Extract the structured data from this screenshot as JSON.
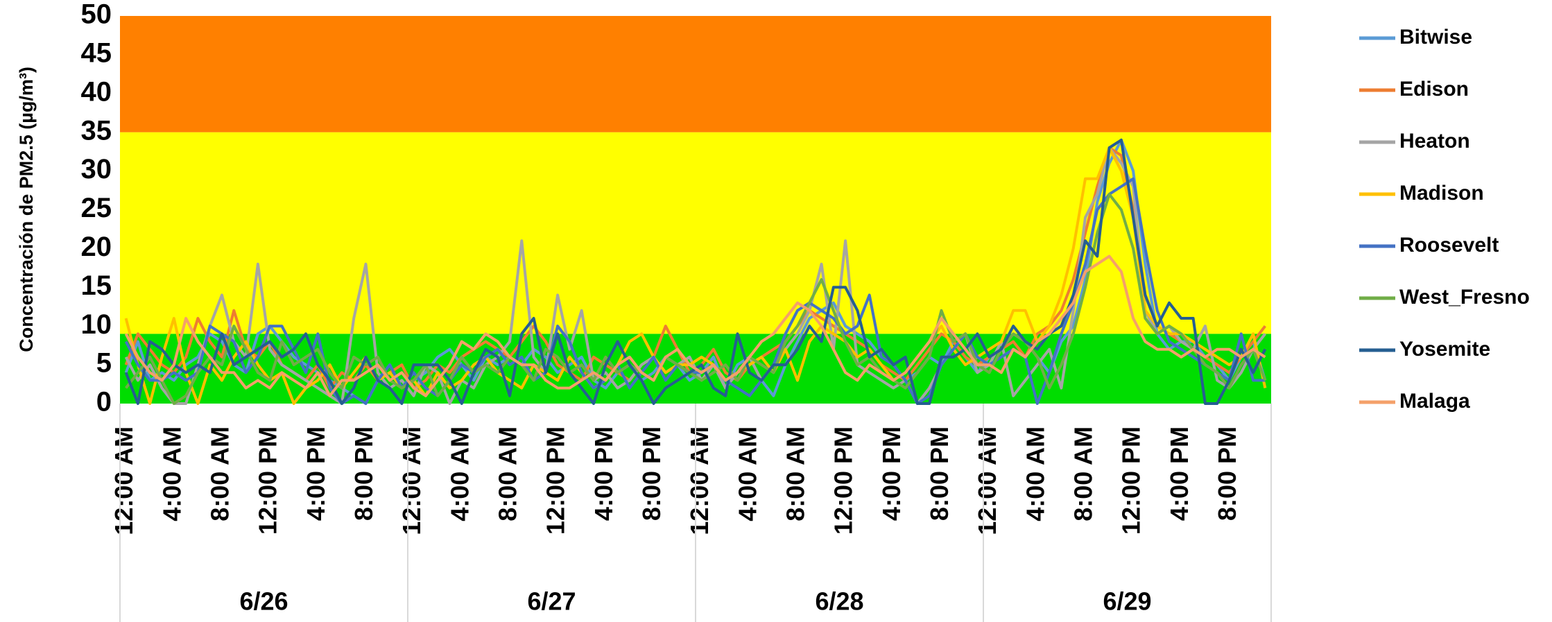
{
  "chart_data": {
    "type": "line",
    "y_label": "Concentración de PM2.5  (µg/m³)",
    "ylim": [
      0,
      50
    ],
    "yticks": [
      0,
      5,
      10,
      15,
      20,
      25,
      30,
      35,
      40,
      45,
      50
    ],
    "bands": [
      {
        "from": 0,
        "to": 9,
        "color": "#00dd00"
      },
      {
        "from": 9,
        "to": 35,
        "color": "#ffff00"
      },
      {
        "from": 35,
        "to": 50,
        "color": "#ff8000"
      }
    ],
    "groups": [
      "6/26",
      "6/27",
      "6/28",
      "6/29"
    ],
    "categories": [
      "12:00 AM",
      null,
      null,
      null,
      "4:00 AM",
      null,
      null,
      null,
      "8:00 AM",
      null,
      null,
      null,
      "12:00 PM",
      null,
      null,
      null,
      "4:00 PM",
      null,
      null,
      null,
      "8:00 PM",
      null,
      null,
      null,
      "12:00 AM",
      null,
      null,
      null,
      "4:00 AM",
      null,
      null,
      null,
      "8:00 AM",
      null,
      null,
      null,
      "12:00 PM",
      null,
      null,
      null,
      "4:00 PM",
      null,
      null,
      null,
      "8:00 PM",
      null,
      null,
      null,
      "12:00 AM",
      null,
      null,
      null,
      "4:00 AM",
      null,
      null,
      null,
      "8:00 AM",
      null,
      null,
      null,
      "12:00 PM",
      null,
      null,
      null,
      "4:00 PM",
      null,
      null,
      null,
      "8:00 PM",
      null,
      null,
      null,
      "12:00 AM",
      null,
      null,
      null,
      "4:00 AM",
      null,
      null,
      null,
      "8:00 AM",
      null,
      null,
      null,
      "12:00 PM",
      null,
      null,
      null,
      "4:00 PM",
      null,
      null,
      null,
      "8:00 PM",
      null,
      null,
      null
    ],
    "series": [
      {
        "name": "Bitwise",
        "color": "#5b9bd5",
        "values": [
          4,
          8,
          3,
          4,
          3,
          5,
          6,
          9,
          8,
          5,
          4,
          9,
          10,
          8,
          6,
          5,
          4,
          3,
          2,
          1,
          0,
          3,
          5,
          2,
          3,
          4,
          6,
          7,
          5,
          3,
          6,
          5,
          6,
          5,
          7,
          6,
          4,
          5,
          6,
          3,
          2,
          4,
          5,
          3,
          4,
          6,
          5,
          3,
          4,
          6,
          2,
          5,
          6,
          3,
          1,
          5,
          8,
          11,
          12,
          13,
          10,
          9,
          8,
          6,
          5,
          3,
          4,
          6,
          5,
          8,
          6,
          4,
          6,
          7,
          9,
          8,
          6,
          4,
          8,
          10,
          16,
          26,
          31,
          34,
          30,
          18,
          9,
          7,
          8,
          8,
          6,
          5,
          3,
          6,
          8,
          3
        ]
      },
      {
        "name": "Edison",
        "color": "#ed7d31",
        "values": [
          5,
          9,
          7,
          5,
          4,
          6,
          11,
          8,
          6,
          12,
          7,
          6,
          8,
          5,
          4,
          3,
          5,
          2,
          4,
          3,
          5,
          3,
          4,
          5,
          2,
          3,
          5,
          4,
          6,
          7,
          8,
          7,
          6,
          8,
          10,
          8,
          5,
          4,
          3,
          6,
          5,
          4,
          3,
          5,
          6,
          10,
          7,
          4,
          5,
          7,
          4,
          3,
          5,
          6,
          7,
          8,
          10,
          12,
          11,
          10,
          9,
          8,
          7,
          5,
          4,
          3,
          5,
          7,
          9,
          8,
          6,
          5,
          6,
          7,
          8,
          6,
          9,
          10,
          12,
          16,
          22,
          28,
          33,
          32,
          25,
          14,
          10,
          9,
          8,
          7,
          6,
          5,
          4,
          6,
          8,
          10
        ]
      },
      {
        "name": "Heaton",
        "color": "#a5a5a5",
        "values": [
          6,
          3,
          5,
          2,
          0,
          0,
          5,
          10,
          14,
          8,
          6,
          18,
          7,
          5,
          4,
          3,
          2,
          1,
          0,
          11,
          18,
          4,
          2,
          3,
          1,
          5,
          4,
          0,
          3,
          2,
          5,
          6,
          8,
          21,
          6,
          4,
          14,
          7,
          12,
          3,
          4,
          2,
          3,
          5,
          6,
          4,
          5,
          6,
          3,
          5,
          2,
          4,
          6,
          3,
          5,
          7,
          9,
          12,
          18,
          7,
          21,
          5,
          4,
          3,
          2,
          3,
          0,
          2,
          5,
          7,
          9,
          4,
          5,
          8,
          1,
          3,
          5,
          7,
          2,
          12,
          24,
          27,
          33,
          31,
          28,
          12,
          9,
          10,
          8,
          7,
          10,
          3,
          2,
          4,
          7,
          9
        ]
      },
      {
        "name": "Madison",
        "color": "#ffc000",
        "values": [
          11,
          5,
          0,
          6,
          11,
          4,
          0,
          5,
          3,
          6,
          8,
          5,
          3,
          4,
          0,
          2,
          3,
          5,
          2,
          4,
          6,
          3,
          4,
          2,
          3,
          1,
          4,
          2,
          3,
          5,
          6,
          4,
          3,
          2,
          5,
          4,
          3,
          6,
          4,
          2,
          3,
          5,
          8,
          9,
          6,
          4,
          5,
          5,
          6,
          5,
          3,
          4,
          5,
          6,
          4,
          7,
          3,
          8,
          10,
          9,
          8,
          6,
          7,
          5,
          3,
          4,
          6,
          8,
          10,
          7,
          5,
          6,
          7,
          8,
          12,
          12,
          8,
          10,
          14,
          20,
          29,
          29,
          33,
          30,
          24,
          12,
          10,
          9,
          9,
          8,
          7,
          6,
          5,
          6,
          9,
          2
        ]
      },
      {
        "name": "Roosevelt",
        "color": "#4472c4",
        "values": [
          8,
          5,
          3,
          3,
          4,
          3,
          4,
          10,
          9,
          8,
          4,
          6,
          10,
          10,
          7,
          4,
          9,
          2,
          0,
          1,
          0,
          3,
          5,
          2,
          4,
          2,
          1,
          3,
          5,
          4,
          6,
          7,
          5,
          6,
          3,
          4,
          10,
          8,
          4,
          2,
          3,
          5,
          2,
          4,
          6,
          3,
          5,
          4,
          4,
          5,
          3,
          2,
          1,
          3,
          5,
          9,
          12,
          13,
          12,
          11,
          9,
          10,
          14,
          6,
          5,
          3,
          0,
          1,
          5,
          7,
          9,
          6,
          5,
          6,
          7,
          6,
          0,
          4,
          9,
          13,
          18,
          25,
          27,
          28,
          29,
          20,
          12,
          8,
          7,
          6,
          5,
          4,
          3,
          9,
          3,
          3
        ]
      },
      {
        "name": "West_Fresno",
        "color": "#70ad47",
        "values": [
          2,
          4,
          6,
          3,
          0,
          1,
          4,
          6,
          5,
          10,
          7,
          4,
          3,
          8,
          5,
          6,
          7,
          4,
          2,
          6,
          5,
          6,
          3,
          2,
          3,
          5,
          1,
          3,
          6,
          4,
          5,
          4,
          6,
          5,
          3,
          7,
          6,
          4,
          5,
          3,
          6,
          4,
          5,
          4,
          3,
          6,
          5,
          4,
          3,
          4,
          5,
          3,
          6,
          5,
          4,
          8,
          10,
          13,
          16,
          12,
          8,
          5,
          6,
          4,
          3,
          2,
          4,
          6,
          12,
          8,
          9,
          5,
          4,
          7,
          9,
          8,
          6,
          2,
          5,
          9,
          15,
          22,
          27,
          25,
          20,
          11,
          9,
          10,
          9,
          7,
          5,
          4,
          2,
          5,
          7,
          3
        ]
      },
      {
        "name": "Yosemite",
        "color": "#255e91",
        "values": [
          4,
          0,
          8,
          7,
          5,
          4,
          5,
          4,
          9,
          5,
          6,
          7,
          8,
          6,
          7,
          9,
          5,
          3,
          0,
          2,
          6,
          3,
          2,
          0,
          5,
          5,
          5,
          3,
          0,
          4,
          7,
          6,
          1,
          9,
          11,
          4,
          9,
          4,
          2,
          0,
          5,
          8,
          5,
          3,
          0,
          2,
          3,
          4,
          5,
          2,
          1,
          9,
          4,
          3,
          5,
          5,
          7,
          10,
          8,
          15,
          15,
          12,
          6,
          7,
          5,
          6,
          0,
          0,
          6,
          6,
          7,
          9,
          6,
          7,
          10,
          8,
          7,
          9,
          10,
          14,
          21,
          19,
          33,
          34,
          24,
          14,
          10,
          13,
          11,
          11,
          0,
          0,
          3,
          7,
          4,
          7
        ]
      },
      {
        "name": "Malaga",
        "color": "#f4a06a",
        "values": [
          9,
          6,
          4,
          3,
          5,
          11,
          8,
          6,
          4,
          4,
          2,
          3,
          2,
          4,
          3,
          2,
          4,
          1,
          3,
          3,
          4,
          5,
          3,
          4,
          2,
          1,
          3,
          5,
          8,
          7,
          9,
          8,
          6,
          5,
          5,
          3,
          2,
          2,
          3,
          4,
          3,
          5,
          6,
          4,
          3,
          6,
          7,
          5,
          4,
          5,
          3,
          4,
          6,
          8,
          9,
          11,
          13,
          12,
          10,
          7,
          4,
          3,
          5,
          4,
          3,
          4,
          6,
          8,
          11,
          9,
          7,
          5,
          5,
          4,
          7,
          6,
          8,
          9,
          11,
          13,
          17,
          18,
          19,
          17,
          11,
          8,
          7,
          7,
          6,
          7,
          6,
          7,
          7,
          6,
          7,
          6
        ]
      }
    ]
  }
}
